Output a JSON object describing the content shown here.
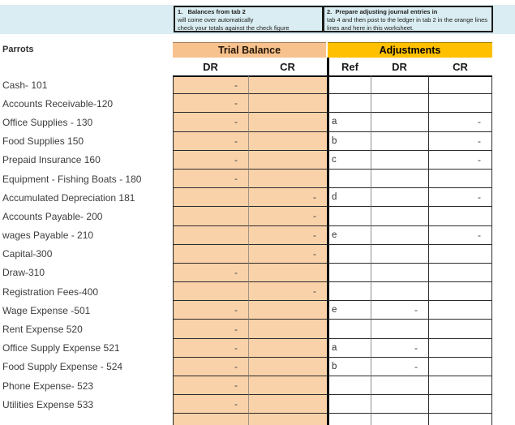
{
  "sheet_name": "Parrots",
  "notes": [
    {
      "title": "1.   Balances from tab 2",
      "line1": "will come over automatically",
      "line2": "check your totals against the check figure"
    },
    {
      "title": "2.  Prepare adjusting journal entries in",
      "line1": "tab 4 and then post to the ledger in tab 2 in the orange lines",
      "line2": "lines and here in this worksheet."
    }
  ],
  "sections": {
    "trial_balance": "Trial Balance",
    "adjustments": "Adjustments"
  },
  "columns": {
    "tb_dr": "DR",
    "tb_cr": "CR",
    "ref": "Ref",
    "adj_dr": "DR",
    "adj_cr": "CR"
  },
  "colors": {
    "trial_balance_header": "#f7c28e",
    "trial_balance_cell": "#fad2a9",
    "adjustments_header": "#ffc000",
    "note_fill": "#d9edf2"
  },
  "rows": [
    {
      "account": "Cash- 101",
      "tb_dr": "-",
      "tb_cr": "",
      "ref": "",
      "adj_dr": "",
      "adj_cr": ""
    },
    {
      "account": "Accounts Receivable-120",
      "tb_dr": "-",
      "tb_cr": "",
      "ref": "",
      "adj_dr": "",
      "adj_cr": ""
    },
    {
      "account": "Office Supplies - 130",
      "tb_dr": "-",
      "tb_cr": "",
      "ref": "a",
      "adj_dr": "",
      "adj_cr": "-"
    },
    {
      "account": "Food Supplies 150",
      "tb_dr": "-",
      "tb_cr": "",
      "ref": "b",
      "adj_dr": "",
      "adj_cr": "-"
    },
    {
      "account": "Prepaid Insurance 160",
      "tb_dr": "-",
      "tb_cr": "",
      "ref": "c",
      "adj_dr": "",
      "adj_cr": "-"
    },
    {
      "account": "Equipment - Fishing Boats - 180",
      "tb_dr": "-",
      "tb_cr": "",
      "ref": "",
      "adj_dr": "",
      "adj_cr": ""
    },
    {
      "account": "Accumulated Depreciation 181",
      "tb_dr": "",
      "tb_cr": "-",
      "ref": "d",
      "adj_dr": "",
      "adj_cr": "-"
    },
    {
      "account": "Accounts Payable- 200",
      "tb_dr": "",
      "tb_cr": "-",
      "ref": "",
      "adj_dr": "",
      "adj_cr": ""
    },
    {
      "account": "wages Payable - 210",
      "tb_dr": "",
      "tb_cr": "-",
      "ref": "e",
      "adj_dr": "",
      "adj_cr": "-"
    },
    {
      "account": "Capital-300",
      "tb_dr": "",
      "tb_cr": "-",
      "ref": "",
      "adj_dr": "",
      "adj_cr": ""
    },
    {
      "account": "Draw-310",
      "tb_dr": "-",
      "tb_cr": "",
      "ref": "",
      "adj_dr": "",
      "adj_cr": ""
    },
    {
      "account": "Registration Fees-400",
      "tb_dr": "",
      "tb_cr": "-",
      "ref": "",
      "adj_dr": "",
      "adj_cr": ""
    },
    {
      "account": "Wage Expense -501",
      "tb_dr": "-",
      "tb_cr": "",
      "ref": "e",
      "adj_dr": "-",
      "adj_cr": ""
    },
    {
      "account": "Rent Expense 520",
      "tb_dr": "-",
      "tb_cr": "",
      "ref": "",
      "adj_dr": "",
      "adj_cr": ""
    },
    {
      "account": "Office Supply Expense 521",
      "tb_dr": "-",
      "tb_cr": "",
      "ref": "a",
      "adj_dr": "-",
      "adj_cr": ""
    },
    {
      "account": "Food Supply Expense - 524",
      "tb_dr": "-",
      "tb_cr": "",
      "ref": "b",
      "adj_dr": "-",
      "adj_cr": ""
    },
    {
      "account": "Phone Expense- 523",
      "tb_dr": "-",
      "tb_cr": "",
      "ref": "",
      "adj_dr": "",
      "adj_cr": ""
    },
    {
      "account": "Utilities Expense 533",
      "tb_dr": "-",
      "tb_cr": "",
      "ref": "",
      "adj_dr": "",
      "adj_cr": ""
    },
    {
      "account": "",
      "tb_dr": "",
      "tb_cr": "",
      "ref": "",
      "adj_dr": "",
      "adj_cr": ""
    }
  ]
}
